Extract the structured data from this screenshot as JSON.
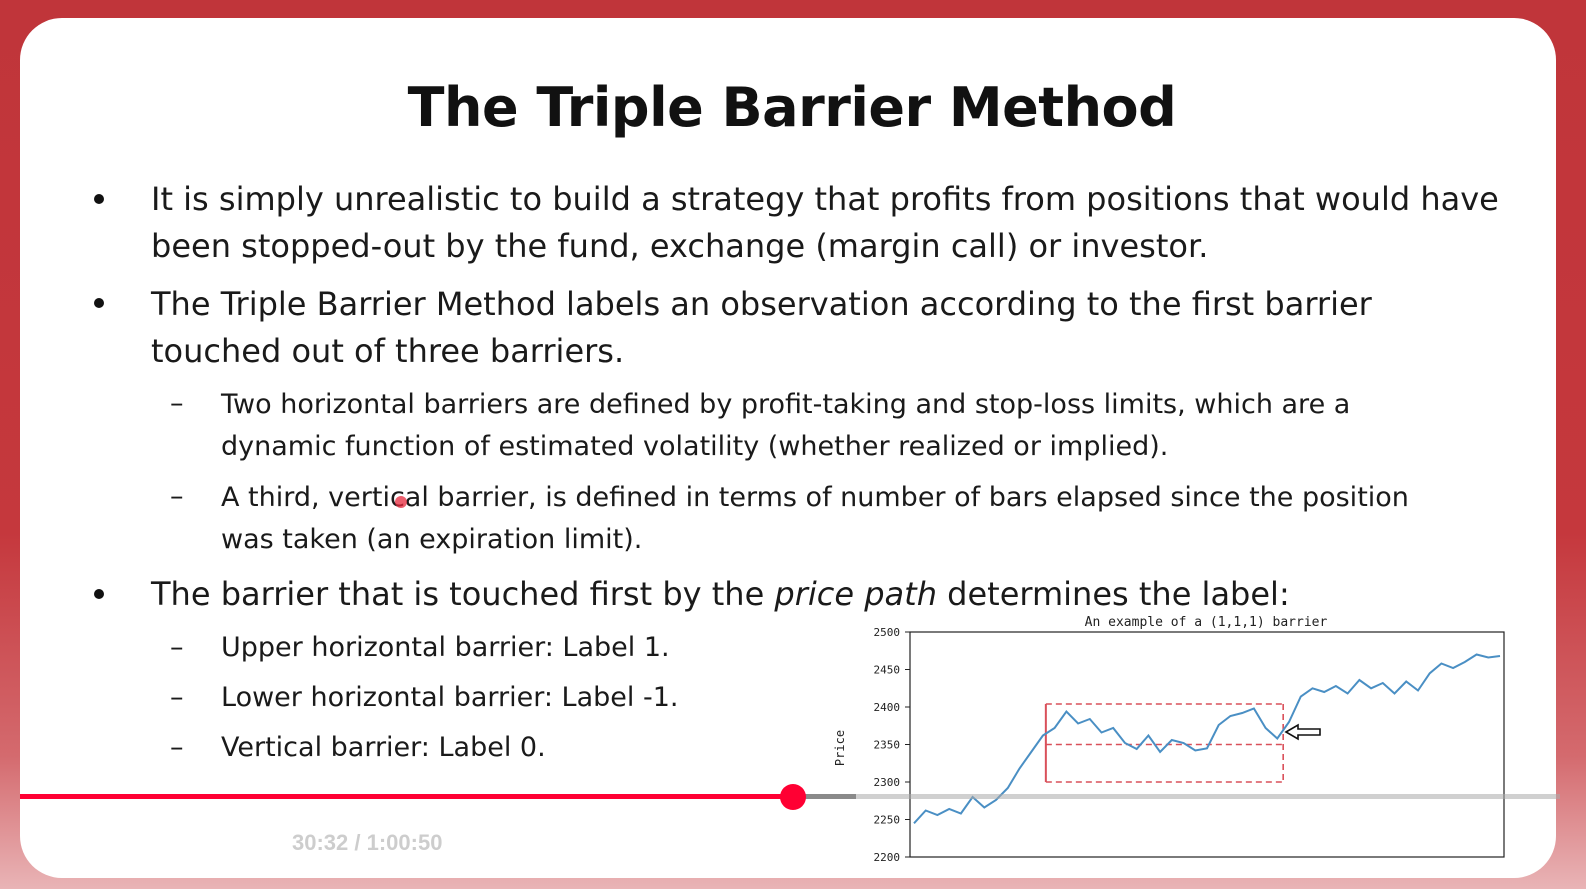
{
  "slide": {
    "title": "The Triple Barrier Method",
    "bullets": [
      {
        "lines": [
          "It is simply unrealistic to build a strategy that profits from positions that would have",
          "been stopped-out by the fund, exchange (margin call) or investor."
        ]
      },
      {
        "lines": [
          "The Triple Barrier Method labels an observation according to the first barrier",
          "touched out of three barriers."
        ],
        "subs": [
          {
            "lines": [
              "Two horizontal barriers are defined by profit-taking and stop-loss limits, which are a",
              "dynamic function of estimated volatility (whether realized or implied)."
            ]
          },
          {
            "lines": [
              "A third, vertical barrier, is defined in terms of number of bars elapsed since the position",
              "was taken (an expiration limit)."
            ]
          }
        ]
      },
      {
        "prefix": "The barrier that is touched first by the ",
        "emphasis": "price path",
        "suffix": " determines the label:",
        "subs": [
          {
            "text": "Upper horizontal barrier: Label 1."
          },
          {
            "text": "Lower horizontal barrier: Label -1."
          },
          {
            "text": "Vertical barrier: Label 0."
          }
        ]
      }
    ],
    "dash": "–"
  },
  "chart_data": {
    "type": "line",
    "title": "An example of a (1,1,1) barrier",
    "ylabel": "Price",
    "xlabel": "",
    "ylim": [
      2200,
      2500
    ],
    "yticks": [
      "2500",
      "2450",
      "2400",
      "2350",
      "2300",
      "2250",
      "2200"
    ],
    "x": [
      0,
      4,
      8,
      12,
      16,
      20,
      24,
      28,
      32,
      36,
      40,
      44,
      48,
      52,
      56,
      60,
      64,
      68,
      72,
      76,
      80,
      84,
      88,
      92,
      96,
      100,
      104,
      108,
      112,
      116,
      120,
      124,
      128,
      132,
      136,
      140,
      144,
      148,
      152,
      156,
      160,
      164,
      168,
      172,
      176,
      180,
      184,
      188,
      192,
      196,
      200
    ],
    "values": [
      2245,
      2262,
      2256,
      2264,
      2258,
      2280,
      2266,
      2276,
      2292,
      2318,
      2340,
      2362,
      2372,
      2394,
      2378,
      2384,
      2366,
      2372,
      2352,
      2344,
      2362,
      2340,
      2356,
      2352,
      2342,
      2345,
      2376,
      2388,
      2392,
      2398,
      2372,
      2358,
      2380,
      2414,
      2425,
      2420,
      2428,
      2418,
      2436,
      2425,
      2432,
      2418,
      2434,
      2422,
      2445,
      2458,
      2452,
      2460,
      2470,
      2466,
      2468
    ],
    "barriers": {
      "upper": 2404,
      "lower": 2300,
      "entry": 2350,
      "start_x": 45,
      "end_x": 126,
      "color": "#d9505a"
    },
    "line_color": "#4a8fc4",
    "grid": false,
    "annotation": "arrow pointing at upper barrier touch"
  },
  "player": {
    "time": "30:32 / 1:00:50",
    "progress_percent": 50.2,
    "buffered_percent": 54.3,
    "played_color": "#ff0033"
  }
}
